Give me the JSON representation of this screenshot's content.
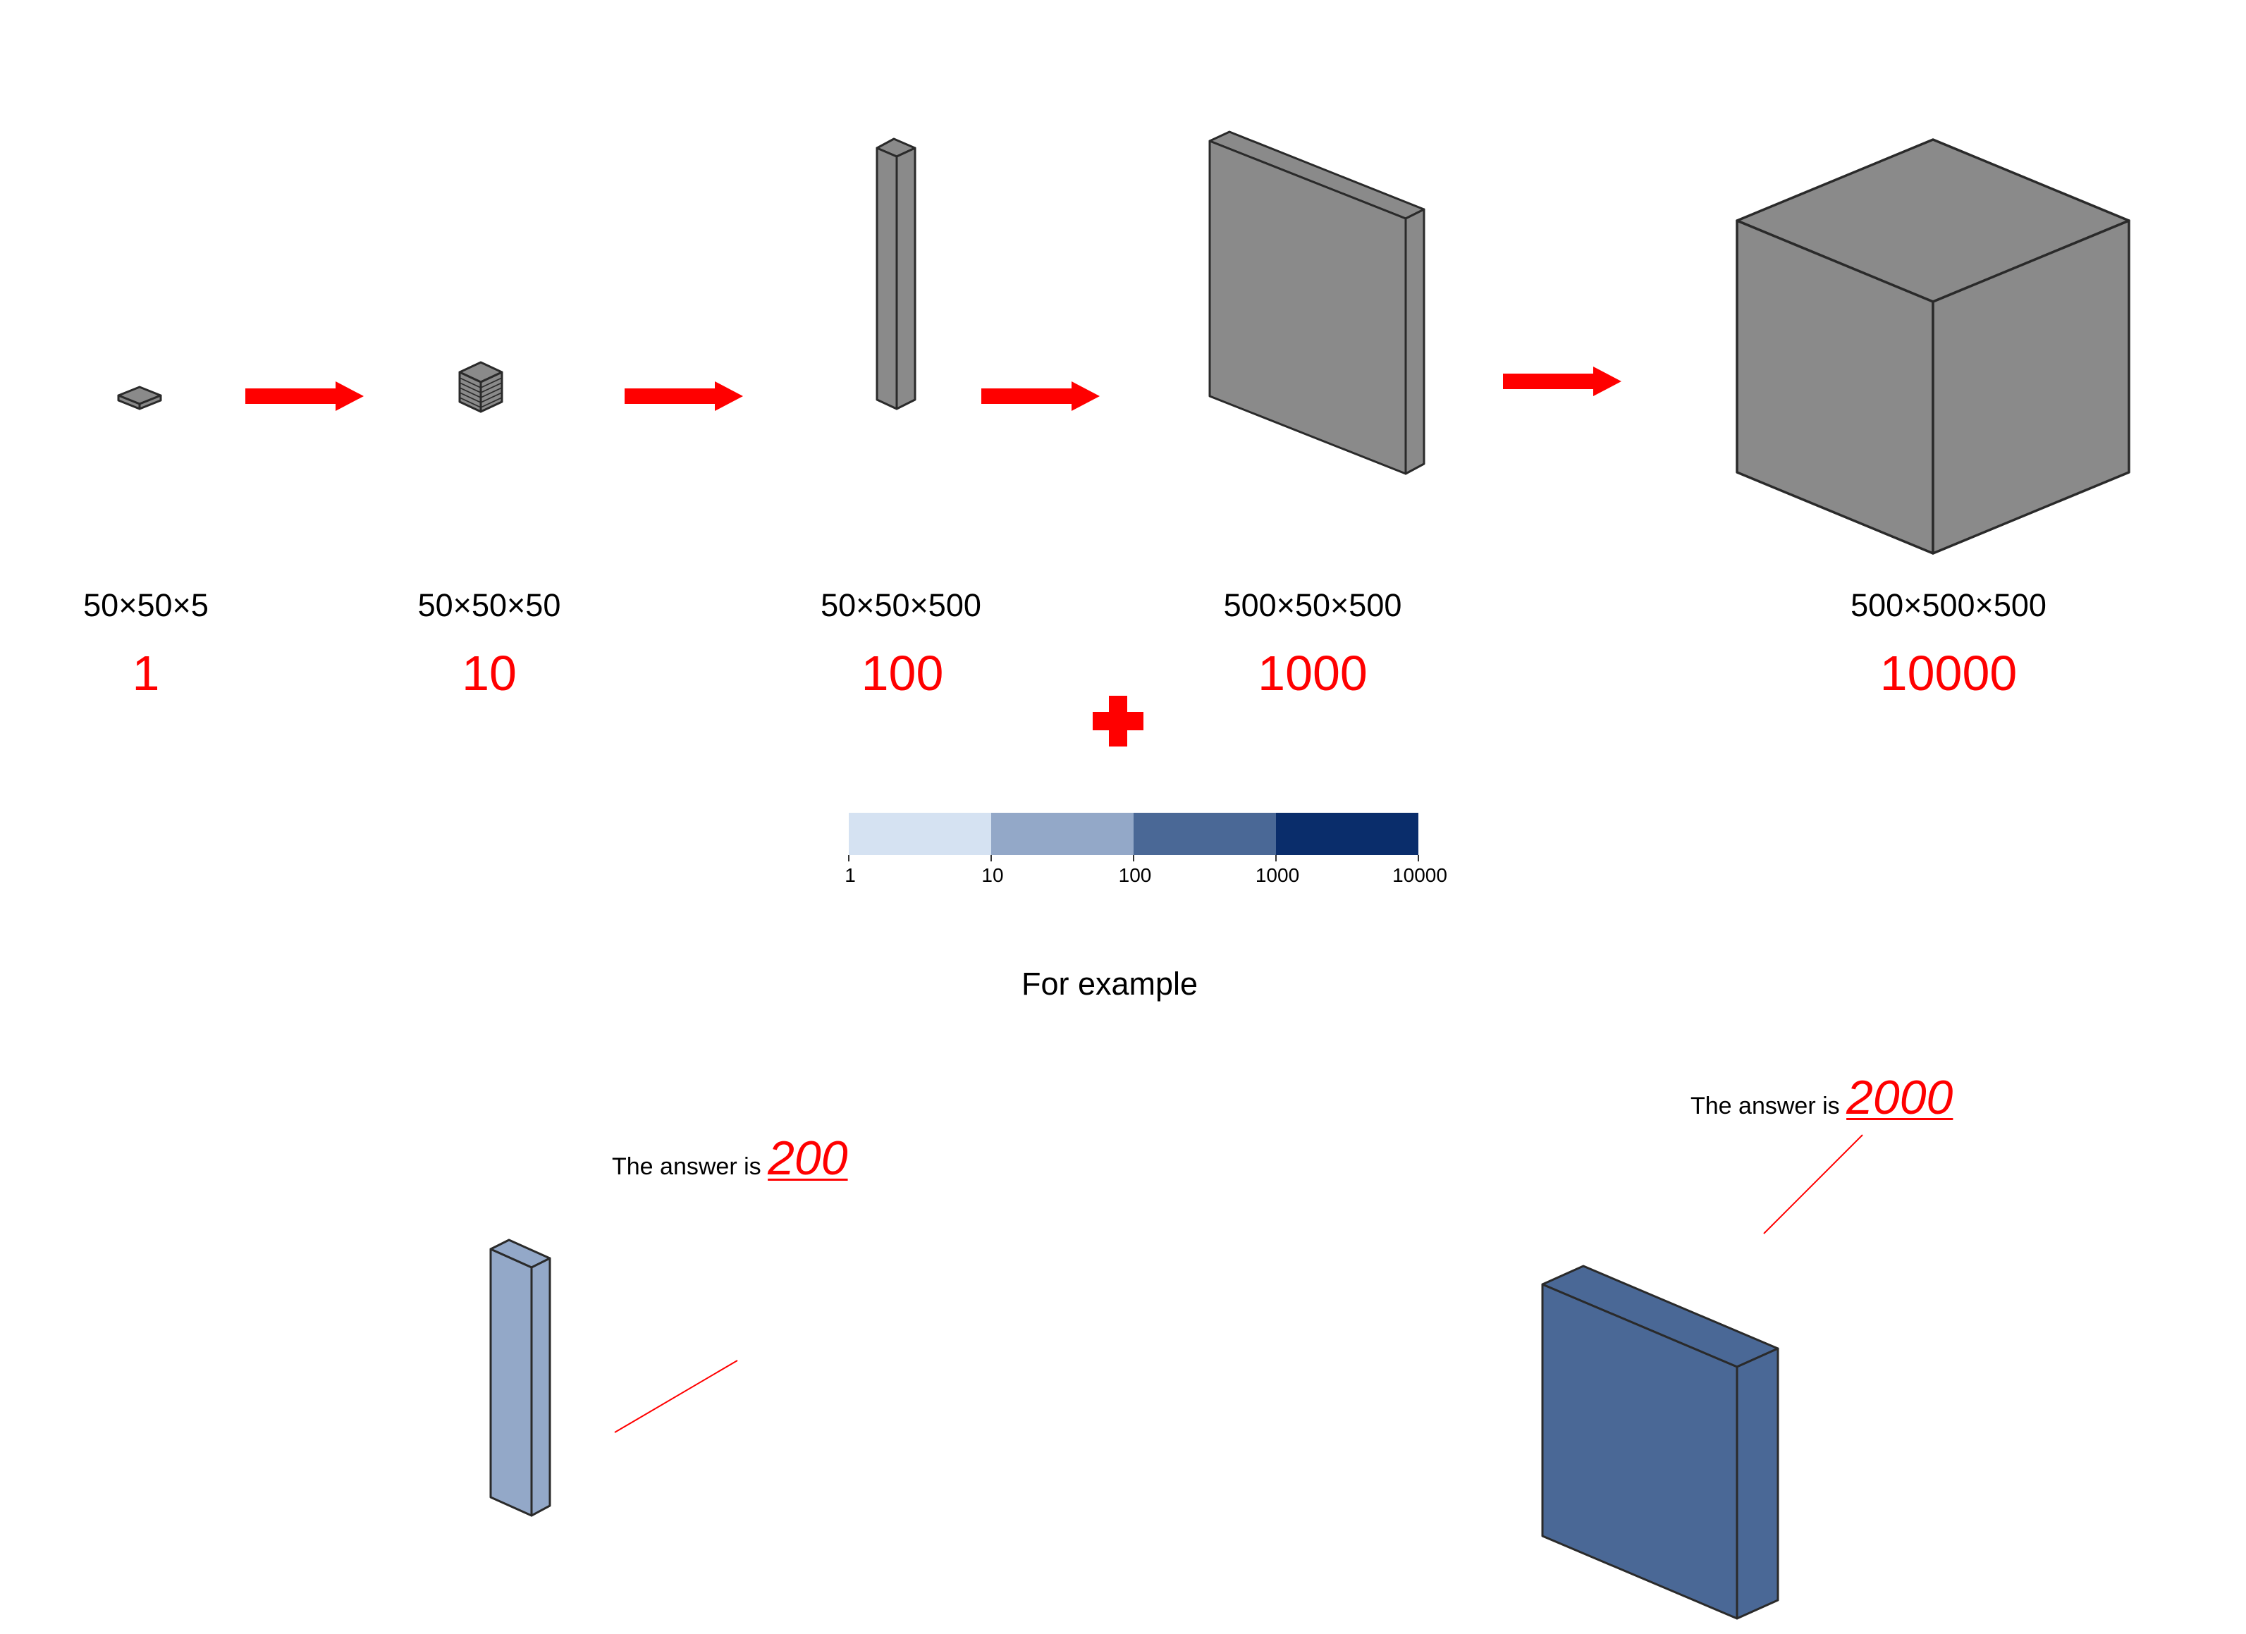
{
  "colors": {
    "arrow": "#ff0000",
    "plus": "#ff0000",
    "block_fill": "#8a8a8a",
    "outline": "#2a2a2a",
    "answer_line": "#ff0000",
    "scale": [
      "#d5e2f2",
      "#93a8c8",
      "#4a6896",
      "#0a2d6b"
    ]
  },
  "scale_steps": [
    {
      "dims": "50×50×5",
      "value": "1"
    },
    {
      "dims": "50×50×50",
      "value": "10"
    },
    {
      "dims": "50×50×500",
      "value": "100"
    },
    {
      "dims": "500×50×500",
      "value": "1000"
    },
    {
      "dims": "500×500×500",
      "value": "10000"
    }
  ],
  "colorbar": {
    "ticks": [
      "1",
      "10",
      "100",
      "1000",
      "10000"
    ]
  },
  "example": {
    "label": "For example",
    "answers": [
      {
        "prefix": "The answer is ",
        "value": "200",
        "fill": "#93a8c8"
      },
      {
        "prefix": "The answer is ",
        "value": "2000",
        "fill": "#4a6896"
      }
    ]
  },
  "icons": [
    "arrow-right-icon",
    "plus-icon"
  ]
}
